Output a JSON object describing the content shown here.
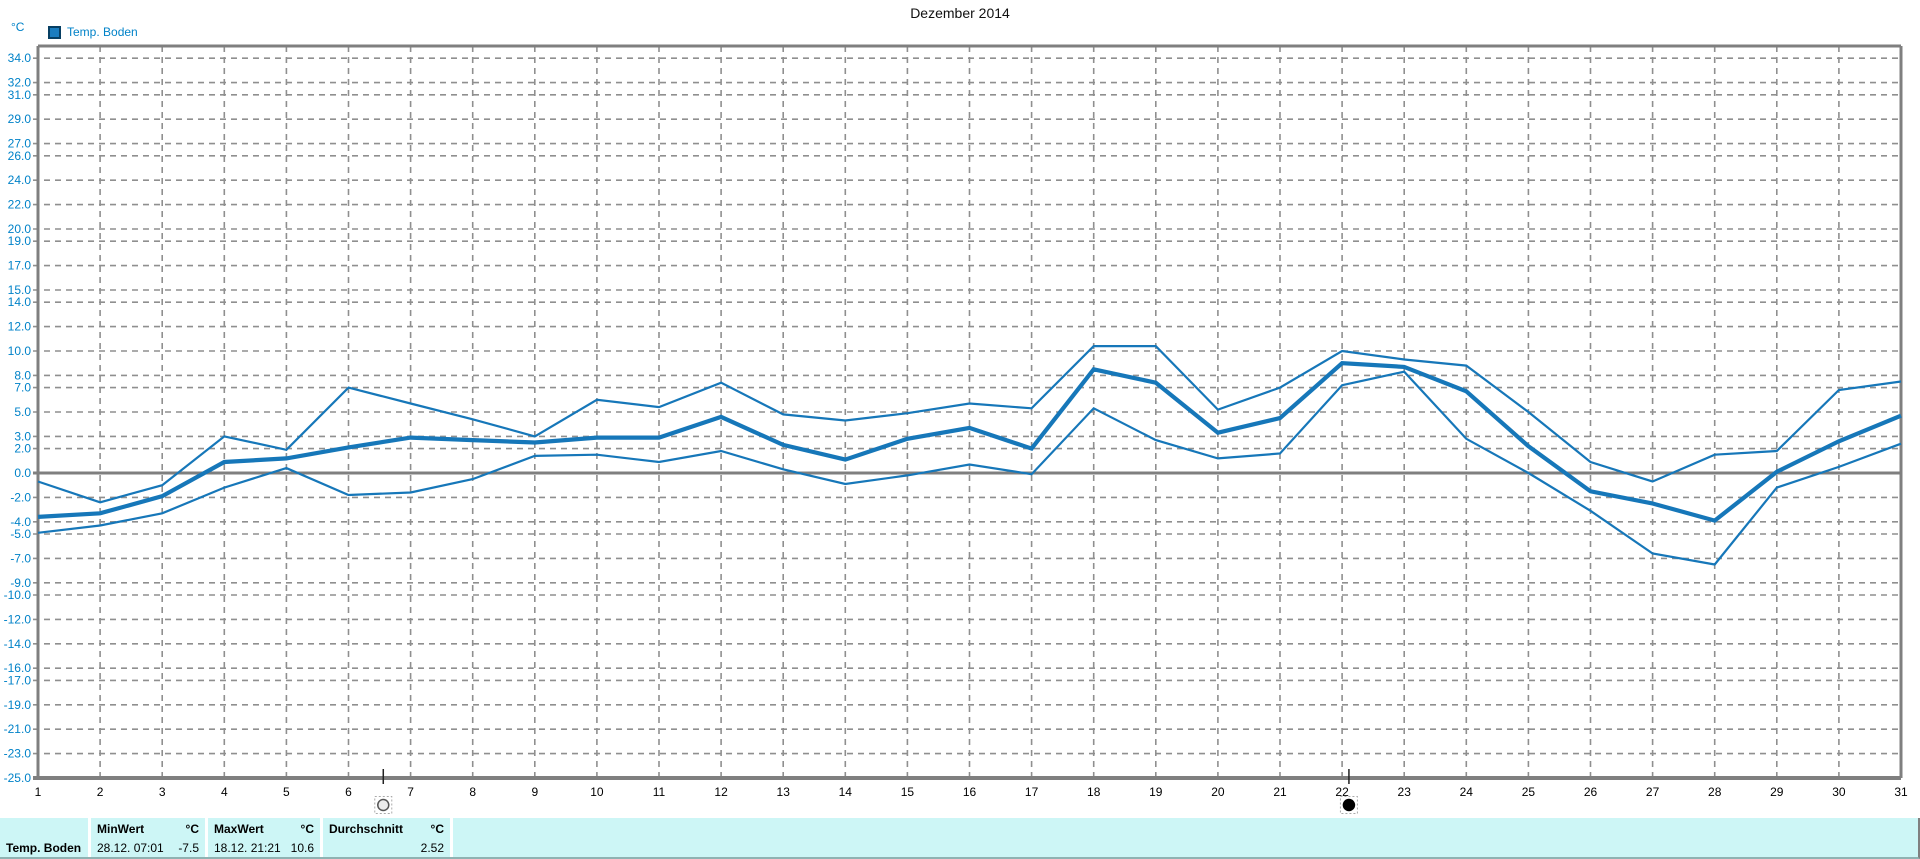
{
  "title": "Dezember 2014",
  "y_axis": {
    "unit": "°C",
    "ticks": [
      "34.0",
      "32.0",
      "31.0",
      "29.0",
      "27.0",
      "26.0",
      "24.0",
      "22.0",
      "20.0",
      "19.0",
      "17.0",
      "15.0",
      "14.0",
      "12.0",
      "10.0",
      "8.0",
      "7.0",
      "5.0",
      "3.0",
      "2.0",
      "0.0",
      "-2.0",
      "-4.0",
      "-5.0",
      "-7.0",
      "-9.0",
      "-10.0",
      "-12.0",
      "-14.0",
      "-16.0",
      "-17.0",
      "-19.0",
      "-21.0",
      "-23.0",
      "-25.0"
    ]
  },
  "x_axis": {
    "ticks": [
      "1",
      "2",
      "3",
      "4",
      "5",
      "6",
      "7",
      "8",
      "9",
      "10",
      "11",
      "12",
      "13",
      "14",
      "15",
      "16",
      "17",
      "18",
      "19",
      "20",
      "21",
      "22",
      "23",
      "24",
      "25",
      "26",
      "27",
      "28",
      "29",
      "30",
      "31"
    ]
  },
  "legend": {
    "label": "Temp. Boden",
    "swatch_color": "#1b7dbf"
  },
  "colors": {
    "series_line": "#1677b9",
    "blue_text": "#0082c8",
    "grid": "#8f8f8f",
    "axis": "#7f7f7f",
    "table_bg": "#cdf6f6"
  },
  "chart_data": {
    "type": "line",
    "title": "Dezember 2014",
    "ylabel": "°C",
    "legend_label": "Temp. Boden",
    "ylim": [
      -25,
      35
    ],
    "grid": true,
    "x": [
      1,
      2,
      3,
      4,
      5,
      6,
      7,
      8,
      9,
      10,
      11,
      12,
      13,
      14,
      15,
      16,
      17,
      18,
      19,
      20,
      21,
      22,
      23,
      24,
      25,
      26,
      27,
      28,
      29,
      30,
      31
    ],
    "series": [
      {
        "name": "max",
        "values": [
          -0.7,
          -2.4,
          -1.0,
          3.0,
          1.9,
          7.0,
          5.7,
          4.4,
          3.0,
          6.0,
          5.4,
          7.4,
          4.8,
          4.3,
          4.9,
          5.7,
          5.3,
          10.4,
          10.4,
          5.2,
          7.0,
          10.0,
          9.3,
          8.8,
          5.0,
          0.9,
          -0.7,
          1.5,
          1.8,
          6.8,
          7.5
        ]
      },
      {
        "name": "mean",
        "values": [
          -3.6,
          -3.3,
          -1.9,
          0.9,
          1.2,
          2.1,
          2.9,
          2.7,
          2.5,
          2.9,
          2.9,
          4.6,
          2.3,
          1.1,
          2.8,
          3.7,
          2.0,
          8.5,
          7.4,
          3.3,
          4.5,
          9.0,
          8.7,
          6.7,
          2.2,
          -1.5,
          -2.5,
          -3.9,
          0.1,
          2.6,
          4.7
        ]
      },
      {
        "name": "min",
        "values": [
          -4.9,
          -4.3,
          -3.3,
          -1.2,
          0.4,
          -1.8,
          -1.6,
          -0.5,
          1.4,
          1.5,
          0.9,
          1.8,
          0.3,
          -0.9,
          -0.2,
          0.7,
          -0.1,
          5.3,
          2.7,
          1.2,
          1.6,
          7.2,
          8.3,
          2.8,
          0.0,
          -3.1,
          -6.6,
          -7.5,
          -1.2,
          0.5,
          2.4
        ]
      }
    ],
    "markers": [
      {
        "name": "full-moon",
        "day": 6.56
      },
      {
        "name": "new-moon",
        "day": 22.11
      }
    ]
  },
  "summary_table": {
    "row_label": "Temp. Boden",
    "columns": [
      {
        "header": "MinWert",
        "unit": "°C",
        "datetime": "28.12. 07:01",
        "value": "-7.5"
      },
      {
        "header": "MaxWert",
        "unit": "°C",
        "datetime": "18.12. 21:21",
        "value": "10.6"
      },
      {
        "header": "Durchschnitt",
        "unit": "°C",
        "datetime": "",
        "value": "2.52"
      }
    ]
  }
}
